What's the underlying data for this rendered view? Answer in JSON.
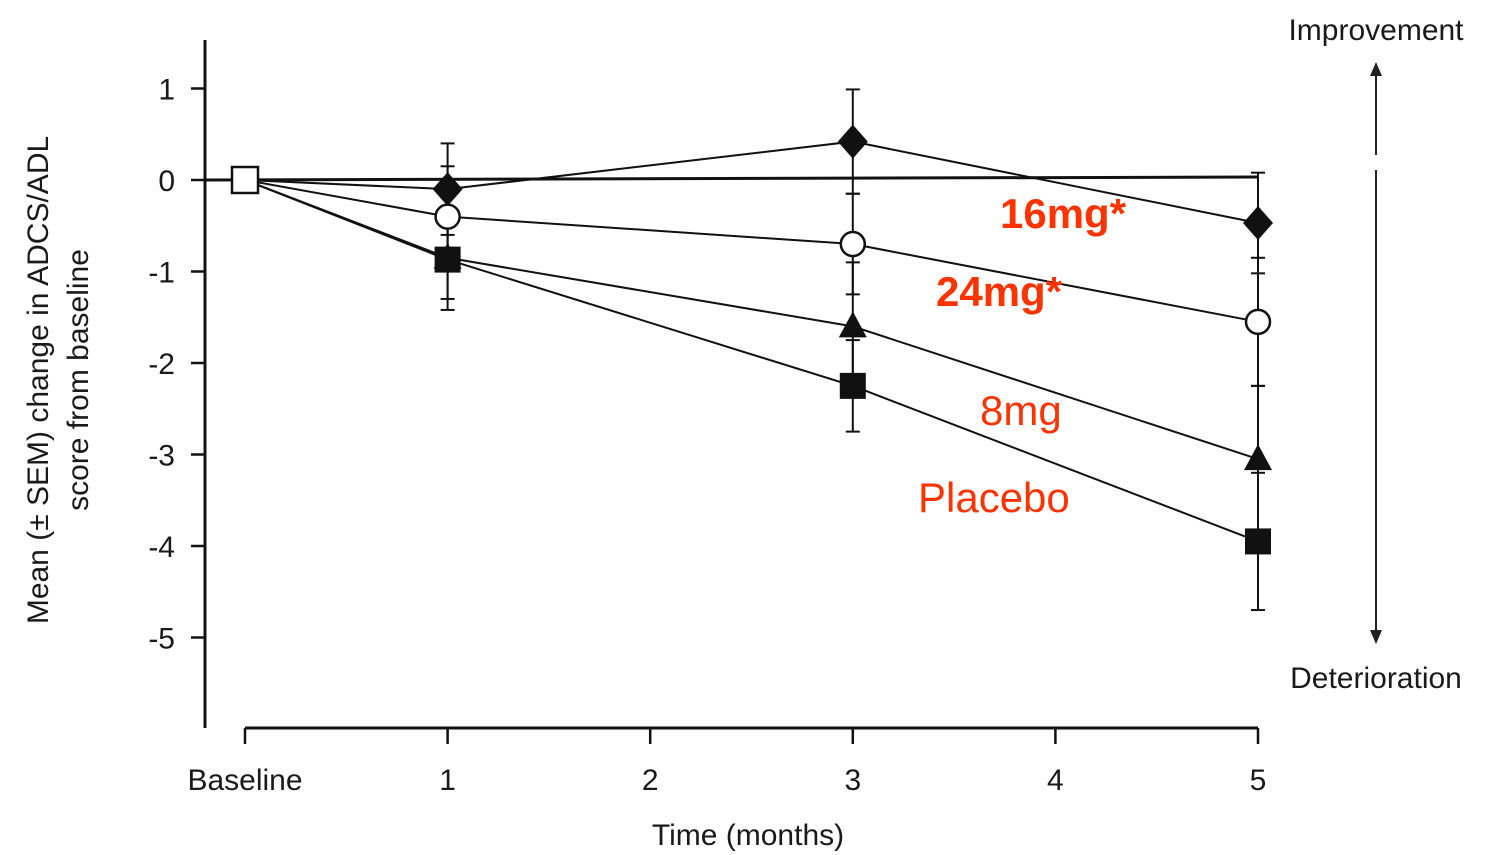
{
  "chart_data": {
    "type": "line",
    "xlabel": "Time (months)",
    "ylabel_line1": "Mean (± SEM) change in ADCS/ADL",
    "ylabel_line2": "score from baseline",
    "x_tick_labels": [
      "Baseline",
      "1",
      "2",
      "3",
      "4",
      "5"
    ],
    "x_ticks": [
      0,
      1,
      2,
      3,
      4,
      5
    ],
    "y_ticks": [
      1,
      0,
      -1,
      -2,
      -3,
      -4,
      -5
    ],
    "y_tick_labels": [
      "1",
      "0",
      "-1",
      "-2",
      "-3",
      "-4",
      "-5"
    ],
    "xlim": [
      -0.2,
      5
    ],
    "ylim": [
      -5.9,
      1.55
    ],
    "grid": false,
    "reference_line_y": 0,
    "annotations": {
      "top": "Improvement",
      "bottom": "Deterioration",
      "label_color": "#ff3300"
    },
    "series": [
      {
        "name": "16mg*",
        "marker": "diamond-filled",
        "bold": true,
        "x": [
          0,
          1,
          3,
          5
        ],
        "y": [
          0,
          -0.1,
          0.42,
          -0.47
        ],
        "err": [
          0,
          0.5,
          0.57,
          0.55
        ]
      },
      {
        "name": "24mg*",
        "marker": "circle-open",
        "bold": true,
        "x": [
          0,
          1,
          3,
          5
        ],
        "y": [
          0,
          -0.4,
          -0.7,
          -1.55
        ],
        "err": [
          0,
          0.55,
          0.55,
          0.7
        ]
      },
      {
        "name": "8mg",
        "marker": "triangle-filled",
        "bold": false,
        "x": [
          0,
          1,
          3,
          5
        ],
        "y": [
          0,
          -0.85,
          -1.6,
          -3.05
        ],
        "err": [
          0,
          0.45,
          0.7,
          0.8
        ]
      },
      {
        "name": "Placebo",
        "marker": "square-filled",
        "bold": false,
        "x": [
          0,
          1,
          3,
          5
        ],
        "y": [
          0,
          -0.87,
          -2.25,
          -3.95
        ],
        "err": [
          0,
          0.55,
          0.5,
          0.75
        ]
      }
    ]
  }
}
